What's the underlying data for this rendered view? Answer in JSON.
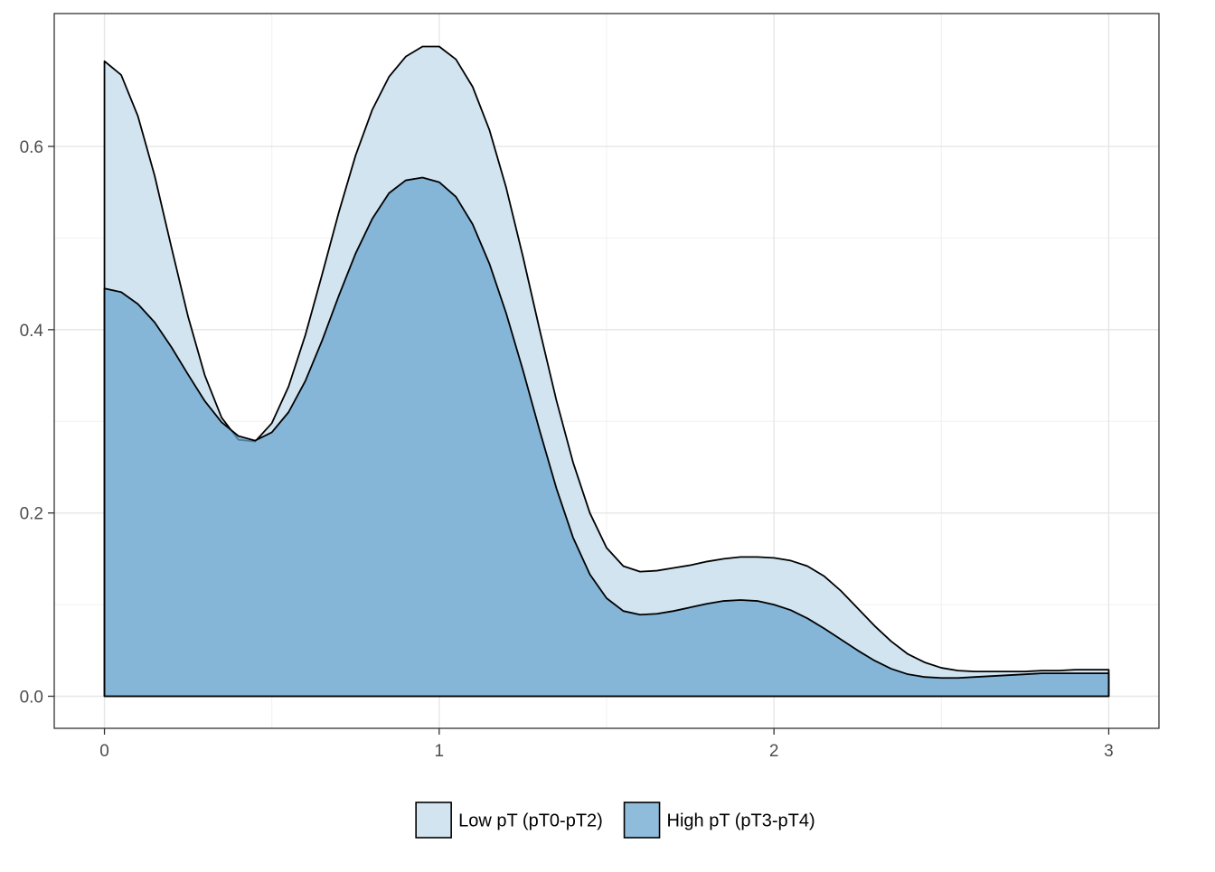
{
  "chart_data": {
    "type": "area",
    "subtype": "density",
    "title": "",
    "xlabel": "",
    "ylabel": "",
    "xlim": [
      -0.15,
      3.15
    ],
    "ylim": [
      -0.035,
      0.745
    ],
    "x_ticks": [
      0,
      1,
      2,
      3
    ],
    "x_tick_labels": [
      "0",
      "1",
      "2",
      "3"
    ],
    "y_ticks": [
      0.0,
      0.2,
      0.4,
      0.6
    ],
    "y_tick_labels": [
      "0.0",
      "0.2",
      "0.4",
      "0.6"
    ],
    "grid": true,
    "legend_position": "bottom",
    "x": [
      0.0,
      0.05,
      0.1,
      0.15,
      0.2,
      0.25,
      0.3,
      0.35,
      0.4,
      0.45,
      0.5,
      0.55,
      0.6,
      0.65,
      0.7,
      0.75,
      0.8,
      0.85,
      0.9,
      0.95,
      1.0,
      1.05,
      1.1,
      1.15,
      1.2,
      1.25,
      1.3,
      1.35,
      1.4,
      1.45,
      1.5,
      1.55,
      1.6,
      1.65,
      1.7,
      1.75,
      1.8,
      1.85,
      1.9,
      1.95,
      2.0,
      2.05,
      2.1,
      2.15,
      2.2,
      2.25,
      2.3,
      2.35,
      2.4,
      2.45,
      2.5,
      2.55,
      2.6,
      2.65,
      2.7,
      2.75,
      2.8,
      2.85,
      2.9,
      2.95,
      3.0
    ],
    "series": [
      {
        "name": "Low pT (pT0-pT2)",
        "color": "#d1e4f0",
        "values": [
          0.693,
          0.678,
          0.633,
          0.568,
          0.49,
          0.414,
          0.35,
          0.304,
          0.28,
          0.278,
          0.298,
          0.338,
          0.394,
          0.46,
          0.528,
          0.59,
          0.64,
          0.676,
          0.698,
          0.709,
          0.709,
          0.695,
          0.665,
          0.618,
          0.555,
          0.48,
          0.4,
          0.323,
          0.255,
          0.2,
          0.162,
          0.142,
          0.136,
          0.137,
          0.14,
          0.143,
          0.147,
          0.15,
          0.152,
          0.152,
          0.151,
          0.148,
          0.142,
          0.131,
          0.115,
          0.096,
          0.077,
          0.06,
          0.046,
          0.037,
          0.031,
          0.028,
          0.027,
          0.027,
          0.027,
          0.027,
          0.028,
          0.028,
          0.029,
          0.029,
          0.029
        ]
      },
      {
        "name": "High pT (pT3-pT4)",
        "color": "#6ba5cf",
        "values": [
          0.445,
          0.441,
          0.428,
          0.408,
          0.381,
          0.351,
          0.322,
          0.299,
          0.284,
          0.279,
          0.288,
          0.31,
          0.344,
          0.388,
          0.437,
          0.483,
          0.521,
          0.549,
          0.563,
          0.566,
          0.561,
          0.545,
          0.515,
          0.472,
          0.418,
          0.356,
          0.29,
          0.227,
          0.173,
          0.133,
          0.107,
          0.093,
          0.089,
          0.09,
          0.093,
          0.097,
          0.101,
          0.104,
          0.105,
          0.104,
          0.1,
          0.094,
          0.085,
          0.074,
          0.062,
          0.05,
          0.039,
          0.03,
          0.024,
          0.021,
          0.02,
          0.02,
          0.021,
          0.022,
          0.023,
          0.024,
          0.025,
          0.025,
          0.025,
          0.025,
          0.025
        ]
      }
    ]
  }
}
